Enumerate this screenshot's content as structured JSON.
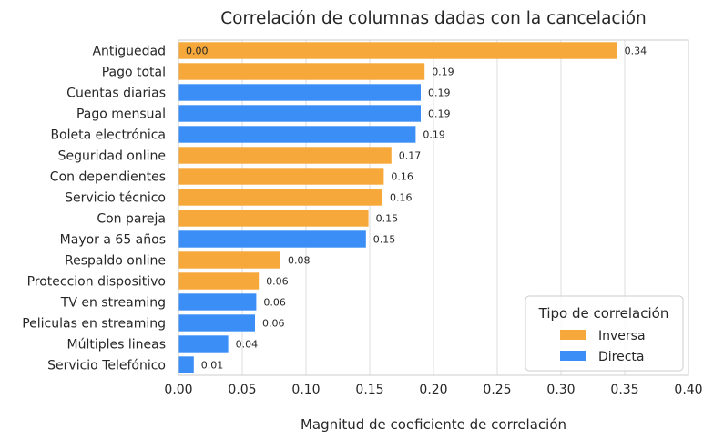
{
  "chart_data": {
    "type": "bar",
    "orientation": "horizontal",
    "title": "Correlación de columnas dadas con la cancelación",
    "xlabel": "Magnitud de coeficiente de correlación",
    "ylabel": "",
    "xlim": [
      0,
      0.4
    ],
    "xticks": [
      "0.00",
      "0.05",
      "0.10",
      "0.15",
      "0.20",
      "0.25",
      "0.30",
      "0.35",
      "0.40"
    ],
    "grid": "vertical",
    "legend": {
      "title": "Tipo de correlación",
      "placement": "bottom-right",
      "entries": [
        {
          "label": "Inversa",
          "color": "#F6A83A"
        },
        {
          "label": "Directa",
          "color": "#3A8EF6"
        }
      ]
    },
    "categories": [
      "Antiguedad",
      "Pago total",
      "Cuentas diarias",
      "Pago mensual",
      "Boleta electrónica",
      "Seguridad online",
      "Con dependientes",
      "Servicio técnico",
      "Con pareja",
      "Mayor a 65 años",
      "Respaldo online",
      "Proteccion dispositivo",
      "TV en streaming",
      "Peliculas en streaming",
      "Múltiples lineas",
      "Servicio Telefónico"
    ],
    "values": [
      0.344,
      0.193,
      0.19,
      0.19,
      0.186,
      0.167,
      0.161,
      0.16,
      0.149,
      0.147,
      0.08,
      0.063,
      0.061,
      0.06,
      0.039,
      0.012
    ],
    "types": [
      "Inversa",
      "Inversa",
      "Directa",
      "Directa",
      "Directa",
      "Inversa",
      "Inversa",
      "Inversa",
      "Inversa",
      "Directa",
      "Inversa",
      "Inversa",
      "Directa",
      "Directa",
      "Directa",
      "Directa"
    ],
    "data_labels": [
      "0.34",
      "0.19",
      "0.19",
      "0.19",
      "0.19",
      "0.17",
      "0.16",
      "0.16",
      "0.15",
      "0.15",
      "0.08",
      "0.06",
      "0.06",
      "0.06",
      "0.04",
      "0.01"
    ],
    "annotations": [
      {
        "text": "0.00",
        "category": "Antiguedad"
      }
    ]
  }
}
